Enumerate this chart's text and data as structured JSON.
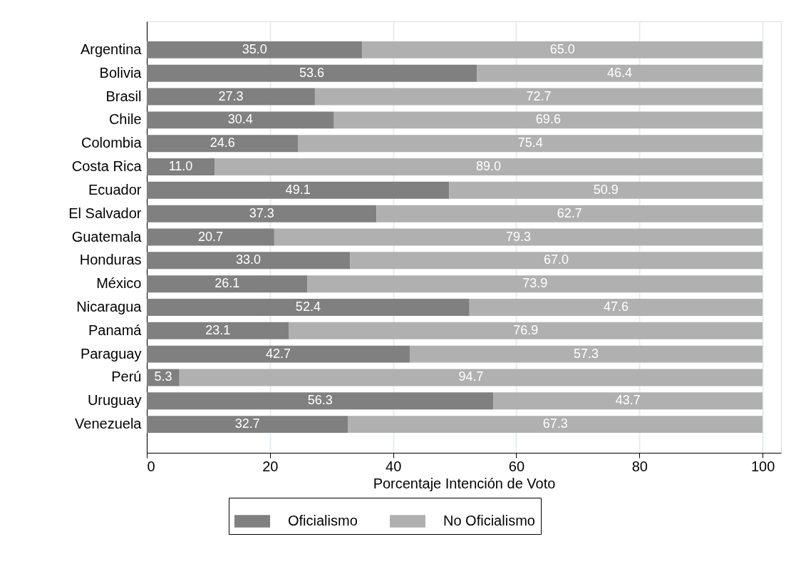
{
  "chart_data": {
    "type": "bar",
    "orientation": "horizontal",
    "stacked": true,
    "xlabel": "Porcentaje Intención de Voto",
    "categories": [
      "Argentina",
      "Bolivia",
      "Brasil",
      "Chile",
      "Colombia",
      "Costa Rica",
      "Ecuador",
      "El Salvador",
      "Guatemala",
      "Honduras",
      "México",
      "Nicaragua",
      "Panamá",
      "Paraguay",
      "Perú",
      "Uruguay",
      "Venezuela"
    ],
    "series": [
      {
        "name": "Oficialismo",
        "color": "#808080",
        "values": [
          35.0,
          53.6,
          27.3,
          30.4,
          24.6,
          11.0,
          49.1,
          37.3,
          20.7,
          33.0,
          26.1,
          52.4,
          23.1,
          42.7,
          5.3,
          56.3,
          32.7
        ],
        "value_labels": [
          "35.0",
          "53.6",
          "27.3",
          "30.4",
          "24.6",
          "11.0",
          "49.1",
          "37.3",
          "20.7",
          "33.0",
          "26.1",
          "52.4",
          "23.1",
          "42.7",
          "5.3",
          "56.3",
          "32.7"
        ]
      },
      {
        "name": "No Oficialismo",
        "color": "#b0b0b0",
        "values": [
          65.0,
          46.4,
          72.7,
          69.6,
          75.4,
          89.0,
          50.9,
          62.7,
          79.3,
          67.0,
          73.9,
          47.6,
          76.9,
          57.3,
          94.7,
          43.7,
          67.3
        ],
        "value_labels": [
          "65.0",
          "46.4",
          "72.7",
          "69.6",
          "75.4",
          "89.0",
          "50.9",
          "62.7",
          "79.3",
          "67.0",
          "73.9",
          "47.6",
          "76.9",
          "57.3",
          "94.7",
          "43.7",
          "67.3"
        ]
      }
    ],
    "xlim": [
      0,
      103
    ],
    "xticks": [
      0,
      20,
      40,
      60,
      80,
      100
    ],
    "grid": "x",
    "legend": "bottom"
  }
}
